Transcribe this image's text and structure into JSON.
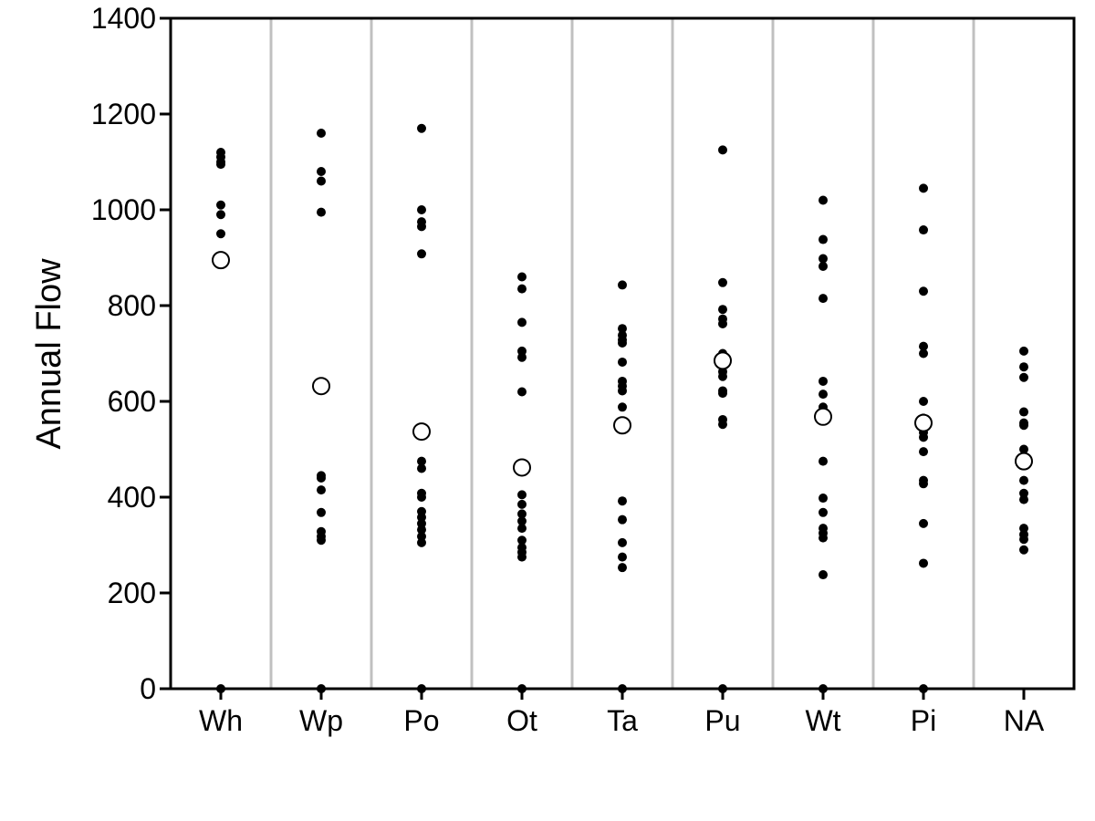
{
  "chart_data": {
    "type": "scatter",
    "ylabel": "Annual Flow",
    "xlabel": "",
    "ylim": [
      0,
      1400
    ],
    "yticks": [
      0,
      200,
      400,
      600,
      800,
      1000,
      1200,
      1400
    ],
    "categories": [
      "Wh",
      "Wp",
      "Po",
      "Ot",
      "Ta",
      "Pu",
      "Wt",
      "Pi",
      "NA"
    ],
    "grid": "vertical separators between categories",
    "points": [
      [
        1120,
        1110,
        1100,
        1095,
        1010,
        990,
        950,
        0
      ],
      [
        1160,
        1080,
        1060,
        995,
        445,
        440,
        415,
        368,
        328,
        318,
        310,
        0
      ],
      [
        1170,
        1000,
        975,
        965,
        908,
        475,
        460,
        408,
        400,
        370,
        358,
        345,
        332,
        318,
        305,
        0
      ],
      [
        860,
        835,
        765,
        705,
        692,
        620,
        405,
        385,
        365,
        350,
        335,
        310,
        295,
        285,
        275,
        0
      ],
      [
        843,
        752,
        738,
        728,
        722,
        682,
        642,
        632,
        622,
        588,
        392,
        353,
        305,
        275,
        253,
        0
      ],
      [
        1125,
        848,
        792,
        772,
        762,
        700,
        682,
        662,
        652,
        622,
        617,
        562,
        552,
        0
      ],
      [
        1020,
        938,
        898,
        882,
        815,
        642,
        615,
        588,
        570,
        562,
        475,
        398,
        368,
        335,
        325,
        315,
        238,
        0
      ],
      [
        1045,
        958,
        830,
        715,
        700,
        600,
        565,
        550,
        535,
        525,
        495,
        435,
        428,
        345,
        262,
        0
      ],
      [
        705,
        672,
        650,
        578,
        555,
        550,
        500,
        435,
        408,
        395,
        335,
        322,
        312,
        290
      ]
    ],
    "means": [
      895,
      632,
      537,
      462,
      550,
      685,
      568,
      555,
      475
    ],
    "marker_styles": {
      "points": "filled black dot",
      "means": "open circle"
    },
    "colors": {
      "points": "#000000",
      "means_stroke": "#000000",
      "means_fill": "#ffffff",
      "separator": "#c0c0c0",
      "axis": "#000000"
    }
  }
}
